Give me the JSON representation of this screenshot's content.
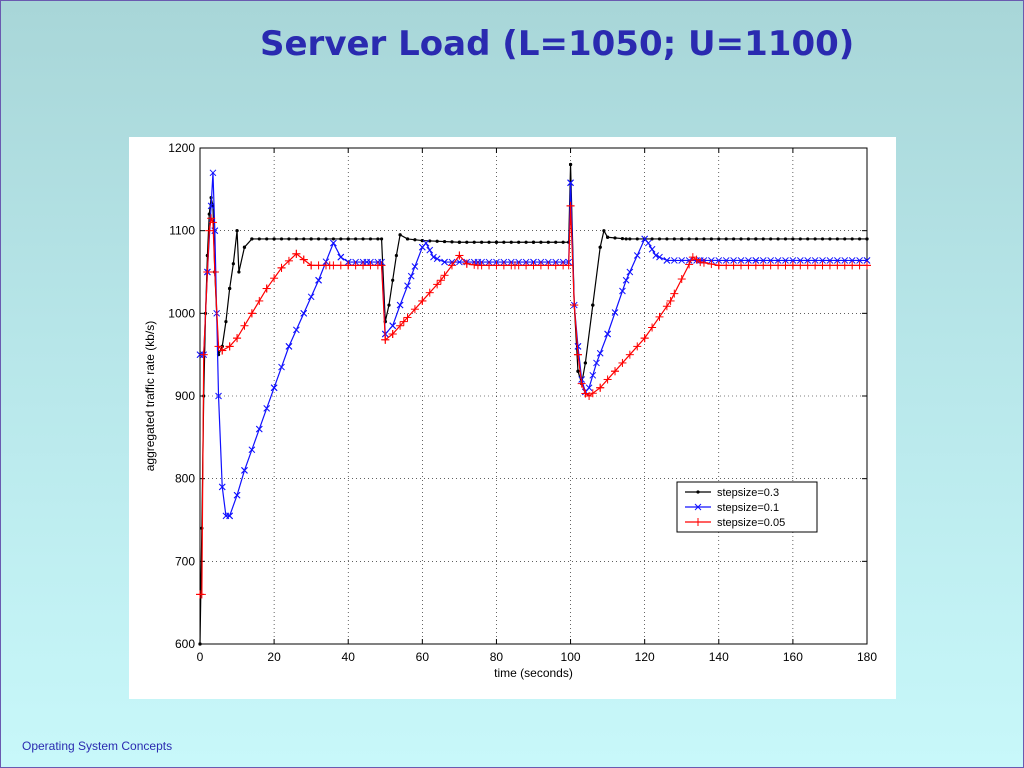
{
  "slide": {
    "title": "Server Load (L=1050; U=1100)",
    "footer": "Operating System Concepts"
  },
  "colors": {
    "title": "#2a2ab0",
    "series_black": "#000000",
    "series_blue": "#1010ff",
    "series_red": "#ff0000"
  },
  "chart_data": {
    "type": "line",
    "title": "",
    "xlabel": "time (seconds)",
    "ylabel": "aggregated traffic rate (kb/s)",
    "xlim": [
      0,
      180
    ],
    "ylim": [
      600,
      1200
    ],
    "xticks": [
      0,
      20,
      40,
      60,
      80,
      100,
      120,
      140,
      160,
      180
    ],
    "yticks": [
      600,
      700,
      800,
      900,
      1000,
      1100,
      1200
    ],
    "grid": true,
    "grid_style": "dotted",
    "legend_position": "lower-right",
    "series": [
      {
        "name": "stepsize=0.3",
        "color": "#000000",
        "marker": "dot",
        "points": [
          [
            0,
            600
          ],
          [
            0.5,
            740
          ],
          [
            1,
            900
          ],
          [
            1.5,
            1000
          ],
          [
            2,
            1070
          ],
          [
            2.5,
            1120
          ],
          [
            3,
            1140
          ],
          [
            3.5,
            1130
          ],
          [
            4,
            1050
          ],
          [
            5,
            950
          ],
          [
            6,
            960
          ],
          [
            7,
            990
          ],
          [
            8,
            1030
          ],
          [
            9,
            1060
          ],
          [
            10,
            1100
          ],
          [
            10.5,
            1050
          ],
          [
            12,
            1080
          ],
          [
            14,
            1090
          ],
          [
            20,
            1090
          ],
          [
            30,
            1090
          ],
          [
            40,
            1090
          ],
          [
            49,
            1090
          ],
          [
            50,
            990
          ],
          [
            51,
            1010
          ],
          [
            53,
            1070
          ],
          [
            54,
            1095
          ],
          [
            56,
            1090
          ],
          [
            60,
            1088
          ],
          [
            70,
            1086
          ],
          [
            80,
            1086
          ],
          [
            90,
            1086
          ],
          [
            99.5,
            1086
          ],
          [
            100,
            1180
          ],
          [
            101,
            1010
          ],
          [
            102,
            930
          ],
          [
            103,
            915
          ],
          [
            104,
            940
          ],
          [
            106,
            1010
          ],
          [
            108,
            1080
          ],
          [
            109,
            1100
          ],
          [
            110,
            1092
          ],
          [
            115,
            1090
          ],
          [
            130,
            1090
          ],
          [
            150,
            1090
          ],
          [
            180,
            1090
          ]
        ]
      },
      {
        "name": "stepsize=0.1",
        "color": "#1010ff",
        "marker": "x",
        "points": [
          [
            0,
            950
          ],
          [
            1,
            950
          ],
          [
            2,
            1050
          ],
          [
            3,
            1130
          ],
          [
            3.5,
            1170
          ],
          [
            4,
            1100
          ],
          [
            4.5,
            1000
          ],
          [
            5,
            900
          ],
          [
            6,
            790
          ],
          [
            7,
            755
          ],
          [
            8,
            755
          ],
          [
            10,
            780
          ],
          [
            12,
            810
          ],
          [
            16,
            860
          ],
          [
            20,
            910
          ],
          [
            24,
            960
          ],
          [
            28,
            1000
          ],
          [
            32,
            1040
          ],
          [
            36,
            1085
          ],
          [
            38,
            1068
          ],
          [
            40,
            1062
          ],
          [
            45,
            1062
          ],
          [
            49,
            1062
          ],
          [
            50,
            975
          ],
          [
            52,
            985
          ],
          [
            54,
            1010
          ],
          [
            57,
            1045
          ],
          [
            60,
            1080
          ],
          [
            61,
            1085
          ],
          [
            63,
            1068
          ],
          [
            66,
            1062
          ],
          [
            75,
            1062
          ],
          [
            90,
            1062
          ],
          [
            99.5,
            1062
          ],
          [
            100,
            1158
          ],
          [
            101,
            1010
          ],
          [
            102,
            960
          ],
          [
            103,
            920
          ],
          [
            104,
            905
          ],
          [
            105,
            910
          ],
          [
            107,
            940
          ],
          [
            110,
            975
          ],
          [
            115,
            1040
          ],
          [
            120,
            1090
          ],
          [
            121,
            1085
          ],
          [
            123,
            1070
          ],
          [
            126,
            1064
          ],
          [
            135,
            1064
          ],
          [
            150,
            1064
          ],
          [
            180,
            1064
          ]
        ]
      },
      {
        "name": "stepsize=0.05",
        "color": "#ff0000",
        "marker": "plus",
        "points": [
          [
            0,
            660
          ],
          [
            0.5,
            660
          ],
          [
            1,
            950
          ],
          [
            2,
            1050
          ],
          [
            2.5,
            1100
          ],
          [
            3,
            1115
          ],
          [
            3.5,
            1110
          ],
          [
            4,
            1050
          ],
          [
            5,
            960
          ],
          [
            6,
            955
          ],
          [
            8,
            960
          ],
          [
            10,
            970
          ],
          [
            14,
            1000
          ],
          [
            18,
            1030
          ],
          [
            22,
            1055
          ],
          [
            26,
            1072
          ],
          [
            28,
            1065
          ],
          [
            30,
            1058
          ],
          [
            35,
            1058
          ],
          [
            40,
            1058
          ],
          [
            49,
            1058
          ],
          [
            50,
            968
          ],
          [
            52,
            975
          ],
          [
            55,
            990
          ],
          [
            60,
            1015
          ],
          [
            65,
            1040
          ],
          [
            70,
            1070
          ],
          [
            72,
            1060
          ],
          [
            75,
            1058
          ],
          [
            85,
            1058
          ],
          [
            99.5,
            1058
          ],
          [
            100,
            1130
          ],
          [
            101,
            1010
          ],
          [
            102,
            950
          ],
          [
            103,
            915
          ],
          [
            104,
            903
          ],
          [
            105,
            900
          ],
          [
            108,
            910
          ],
          [
            112,
            930
          ],
          [
            120,
            970
          ],
          [
            127,
            1015
          ],
          [
            133,
            1068
          ],
          [
            135,
            1062
          ],
          [
            140,
            1058
          ],
          [
            160,
            1058
          ],
          [
            180,
            1058
          ]
        ]
      }
    ]
  }
}
